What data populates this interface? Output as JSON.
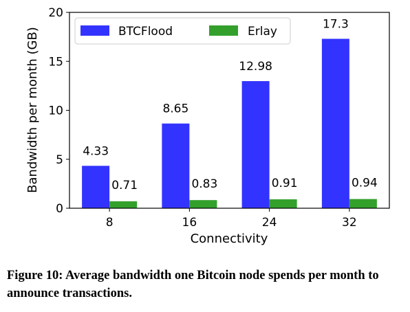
{
  "chart_data": {
    "type": "bar",
    "categories": [
      "8",
      "16",
      "24",
      "32"
    ],
    "series": [
      {
        "name": "BTCFlood",
        "values": [
          4.33,
          8.65,
          12.98,
          17.3
        ],
        "labels": [
          "4.33",
          "8.65",
          "12.98",
          "17.3"
        ],
        "color": "#3333ff"
      },
      {
        "name": "Erlay",
        "values": [
          0.71,
          0.83,
          0.91,
          0.94
        ],
        "labels": [
          "0.71",
          "0.83",
          "0.91",
          "0.94"
        ],
        "color": "#33a02c"
      }
    ],
    "xlabel": "Connectivity",
    "ylabel": "Bandwidth per month (GB)",
    "ylim": [
      0,
      20
    ],
    "yticks": [
      0,
      5,
      10,
      15,
      20
    ],
    "grid": false,
    "legend_position": "top"
  },
  "caption": "Figure 10: Average bandwidth one Bitcoin node spends per month to announce transactions."
}
